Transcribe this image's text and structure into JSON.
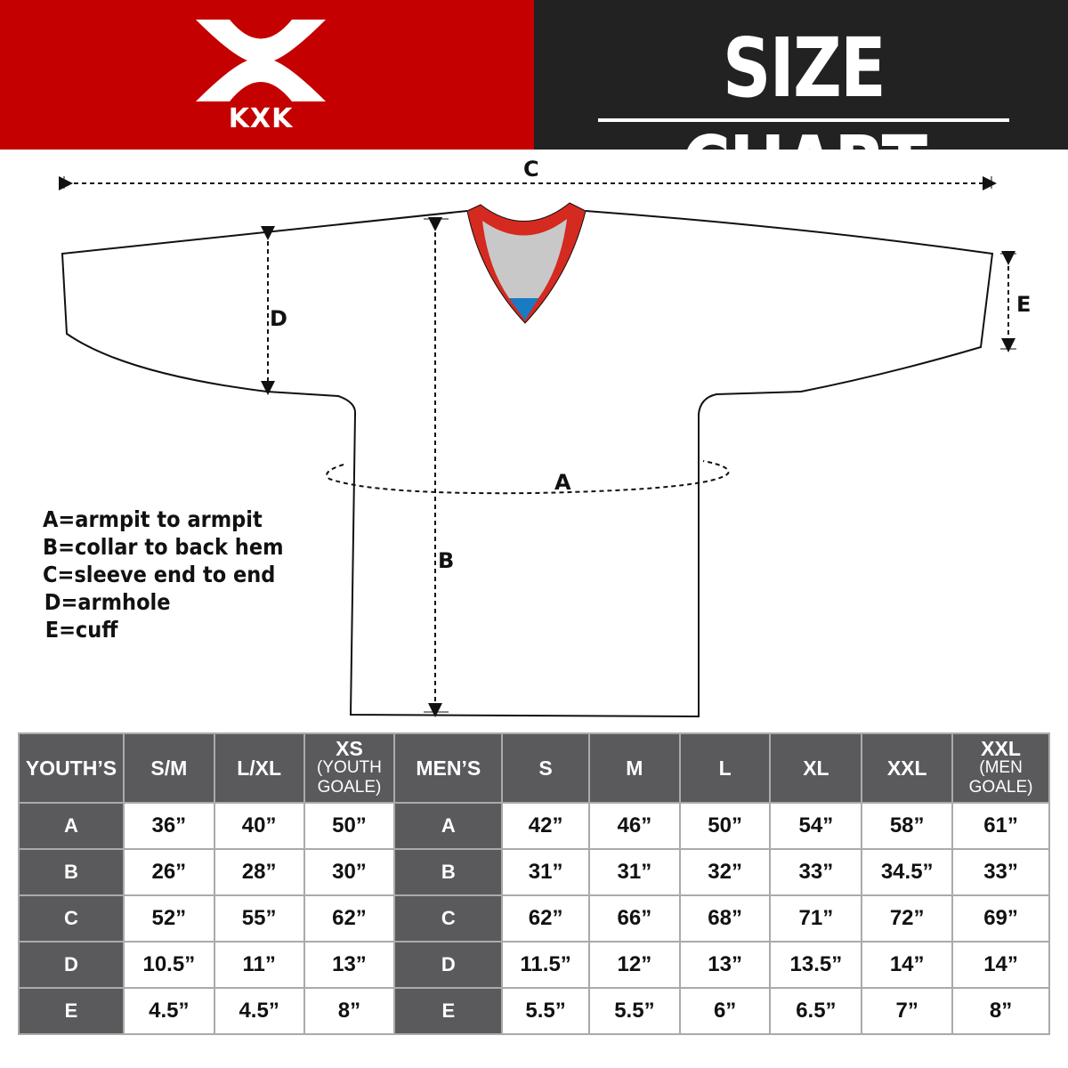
{
  "header": {
    "brand": "KXK",
    "title": "SIZE CHART",
    "brand_color": "#c40000",
    "dark_color": "#222222"
  },
  "diagram": {
    "labels": {
      "a": "A",
      "b": "B",
      "c": "C",
      "d": "D",
      "e": "E"
    },
    "collar_colors": {
      "trim": "#d42a20",
      "inner": "#c8c8c8",
      "tag": "#1a7ac2"
    }
  },
  "legend": [
    "A=armpit to armpit",
    "B=collar to back hem",
    "C=sleeve end to end",
    "D=armhole",
    "E=cuff"
  ],
  "table": {
    "youth": {
      "header": "YOUTH’S",
      "sizes": [
        {
          "main": "S/M"
        },
        {
          "main": "L/XL"
        },
        {
          "main": "XS",
          "sub": "(YOUTH GOALE)"
        }
      ]
    },
    "men": {
      "header": "MEN’S",
      "sizes": [
        {
          "main": "S"
        },
        {
          "main": "M"
        },
        {
          "main": "L"
        },
        {
          "main": "XL"
        },
        {
          "main": "XXL"
        },
        {
          "main": "XXL",
          "sub": "(MEN GOALE)"
        }
      ]
    },
    "rows": [
      {
        "label": "A",
        "youth": [
          "36”",
          "40”",
          "50”"
        ],
        "men": [
          "42”",
          "46”",
          "50”",
          "54”",
          "58”",
          "61”"
        ]
      },
      {
        "label": "B",
        "youth": [
          "26”",
          "28”",
          "30”"
        ],
        "men": [
          "31”",
          "31”",
          "32”",
          "33”",
          "34.5”",
          "33”"
        ]
      },
      {
        "label": "C",
        "youth": [
          "52”",
          "55”",
          "62”"
        ],
        "men": [
          "62”",
          "66”",
          "68”",
          "71”",
          "72”",
          "69”"
        ]
      },
      {
        "label": "D",
        "youth": [
          "10.5”",
          "11”",
          "13”"
        ],
        "men": [
          "11.5”",
          "12”",
          "13”",
          "13.5”",
          "14”",
          "14”"
        ]
      },
      {
        "label": "E",
        "youth": [
          "4.5”",
          "4.5”",
          "8”"
        ],
        "men": [
          "5.5”",
          "5.5”",
          "6”",
          "6.5”",
          "7”",
          "8”"
        ]
      }
    ],
    "header_bg": "#5a5a5c"
  }
}
